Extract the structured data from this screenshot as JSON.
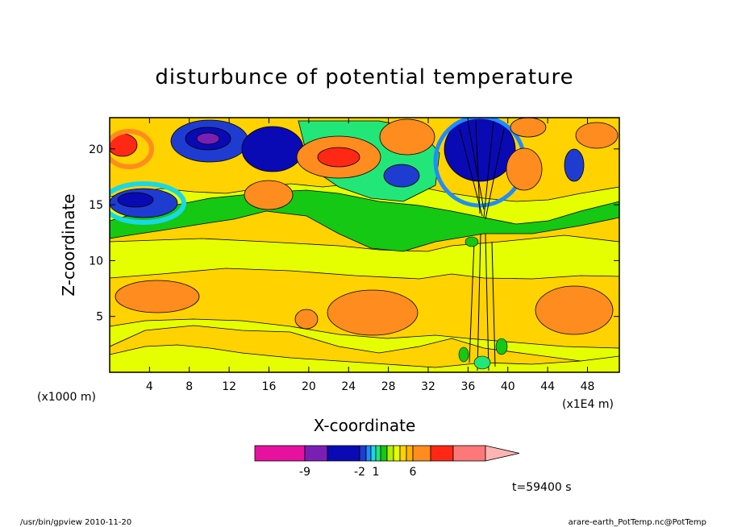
{
  "chart_data": {
    "type": "heatmap",
    "title": "disturbunce of potential temperature",
    "xlabel": "X-coordinate",
    "ylabel": "Z-coordinate",
    "x_unit_label": "(x1E4 m)",
    "y_unit_label": "(x1000 m)",
    "x_ticks": [
      "4",
      "8",
      "12",
      "16",
      "20",
      "24",
      "28",
      "32",
      "36",
      "40",
      "44",
      "48"
    ],
    "y_ticks": [
      "5",
      "10",
      "15",
      "20"
    ],
    "xlim": [
      0,
      51.2
    ],
    "ylim": [
      0,
      22.8
    ],
    "colorbar": {
      "colors": [
        "#e6119e",
        "#7a1fb4",
        "#0a0ab4",
        "#1f3cd0",
        "#1f8cff",
        "#19d8e6",
        "#23e678",
        "#14c814",
        "#b4f000",
        "#e6ff00",
        "#ffd200",
        "#ffb400",
        "#ff8c1e",
        "#ff2814",
        "#ff7878",
        "#ffb4b4"
      ],
      "tick_labels": [
        "-9",
        "-2",
        "1",
        "6"
      ]
    },
    "regions": [
      {
        "x": 4,
        "z": 20.8,
        "value": 4
      },
      {
        "x": 3,
        "z": 15.2,
        "value": -6
      },
      {
        "x": 10,
        "z": 20.8,
        "value": -9
      },
      {
        "x": 16,
        "z": 16.2,
        "value": 3
      },
      {
        "x": 17,
        "z": 21,
        "value": -6
      },
      {
        "x": 23.5,
        "z": 19.5,
        "value": 5
      },
      {
        "x": 29,
        "z": 21,
        "value": 3
      },
      {
        "x": 29,
        "z": 17.5,
        "value": -4
      },
      {
        "x": 23,
        "z": 15,
        "value": -1
      },
      {
        "x": 37.5,
        "z": 19,
        "value": -8
      },
      {
        "x": 41,
        "z": 17.5,
        "value": 2
      },
      {
        "x": 46,
        "z": 19.5,
        "value": -4
      },
      {
        "x": 5,
        "z": 7.5,
        "value": 3
      },
      {
        "x": 27,
        "z": 5,
        "value": 3
      },
      {
        "x": 46,
        "z": 5.5,
        "value": 3
      },
      {
        "x": 37,
        "z": 6,
        "value": 2
      }
    ]
  },
  "annotations": {
    "time_label": "t=59400 s",
    "footer_left": "/usr/bin/gpview  2010-11-20",
    "footer_right": "arare-earth_PotTemp.nc@PotTemp"
  }
}
